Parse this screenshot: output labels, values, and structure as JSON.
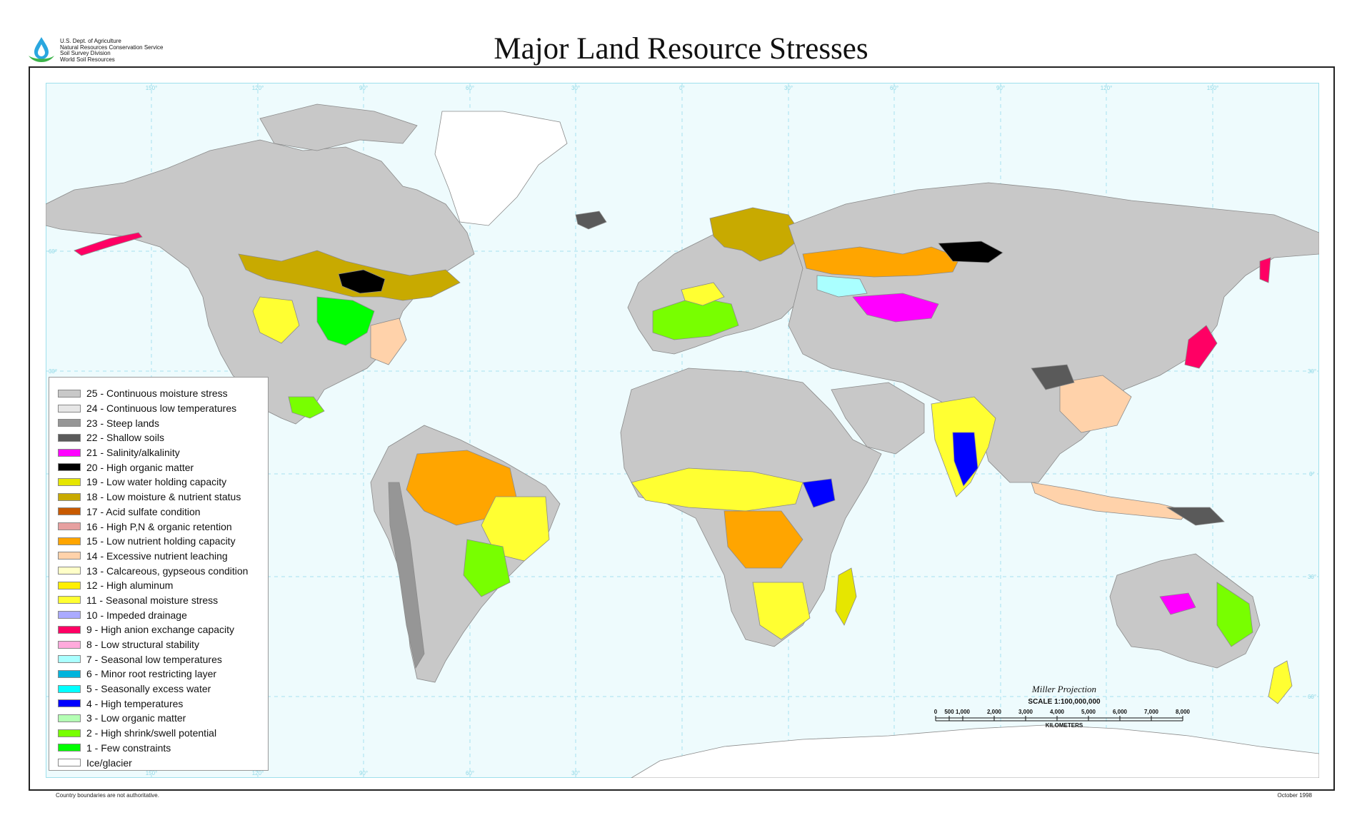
{
  "header": {
    "title": "Major Land Resource Stresses",
    "agency_lines": [
      "U.S. Dept. of Agriculture",
      "Natural Resources Conservation Service",
      "Soil Survey Division",
      "World Soil Resources"
    ],
    "logo_icon": "usda-nrcs-water-drop-icon"
  },
  "colors": {
    "ocean": "#eefbfd",
    "graticule": "#8fd8e6",
    "country_border": "#999999",
    "frame": "#222222"
  },
  "graticule_labels": {
    "longitudes": [
      "150°",
      "120°",
      "90°",
      "60°",
      "30°",
      "0°",
      "30°",
      "60°",
      "90°",
      "120°",
      "150°"
    ],
    "latitudes": [
      "60°",
      "30°",
      "0°",
      "30°",
      "60°"
    ]
  },
  "legend": {
    "items": [
      {
        "label": "25 - Continuous moisture stress",
        "color": "#c8c8c8"
      },
      {
        "label": "24 - Continuous low temperatures",
        "color": "#e6e6e6"
      },
      {
        "label": "23 - Steep lands",
        "color": "#969696"
      },
      {
        "label": "22 - Shallow soils",
        "color": "#5a5a5a"
      },
      {
        "label": "21 - Salinity/alkalinity",
        "color": "#ff00ff"
      },
      {
        "label": "20 - High organic matter",
        "color": "#000000"
      },
      {
        "label": "19 - Low water holding capacity",
        "color": "#e6e600"
      },
      {
        "label": "18 - Low moisture & nutrient status",
        "color": "#c8aa00"
      },
      {
        "label": "17 - Acid sulfate condition",
        "color": "#c85a00"
      },
      {
        "label": "16 - High P,N & organic retention",
        "color": "#e6a0a0"
      },
      {
        "label": "15 - Low nutrient holding capacity",
        "color": "#ffa500"
      },
      {
        "label": "14 - Excessive nutrient leaching",
        "color": "#ffd2aa"
      },
      {
        "label": "13 - Calcareous, gypseous condition",
        "color": "#ffffc8"
      },
      {
        "label": "12 - High aluminum",
        "color": "#ffef00"
      },
      {
        "label": "11 - Seasonal moisture stress",
        "color": "#ffff32"
      },
      {
        "label": "10 - Impeded drainage",
        "color": "#aaaaff"
      },
      {
        "label": "9 - High anion exchange capacity",
        "color": "#ff0064"
      },
      {
        "label": "8 - Low structural stability",
        "color": "#ffaadc"
      },
      {
        "label": "7 - Seasonal low temperatures",
        "color": "#aaffff"
      },
      {
        "label": "6 - Minor root restricting layer",
        "color": "#00b4dc"
      },
      {
        "label": "5 - Seasonally excess water",
        "color": "#00ffff"
      },
      {
        "label": "4 - High temperatures",
        "color": "#0000ff"
      },
      {
        "label": "3 - Low organic matter",
        "color": "#b4ffb4"
      },
      {
        "label": "2 - High shrink/swell potential",
        "color": "#78ff00"
      },
      {
        "label": "1 - Few constraints",
        "color": "#00ff00"
      },
      {
        "label": "Ice/glacier",
        "color": "#ffffff"
      }
    ]
  },
  "scale": {
    "projection": "Miller Projection",
    "scale_text": "SCALE 1:100,000,000",
    "ticks": [
      "0",
      "500",
      "1,000",
      "2,000",
      "3,000",
      "4,000",
      "5,000",
      "6,000",
      "7,000",
      "8,000"
    ],
    "unit": "KILOMETERS"
  },
  "footer": {
    "left": "Country boundaries are not authoritative.",
    "right": "October 1998"
  }
}
